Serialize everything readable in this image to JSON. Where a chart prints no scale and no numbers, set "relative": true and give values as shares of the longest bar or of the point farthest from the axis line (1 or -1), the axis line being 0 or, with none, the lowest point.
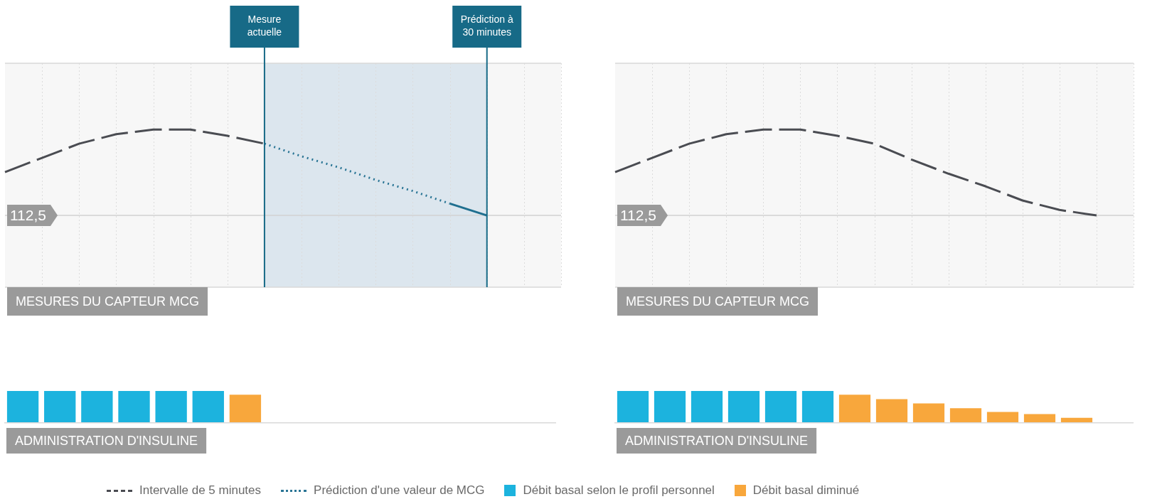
{
  "chart_data": [
    {
      "type": "line",
      "relative": true,
      "categories": [
        null,
        null,
        null,
        null,
        null,
        null,
        null,
        null,
        null,
        null,
        null,
        null,
        null,
        null,
        null,
        null
      ],
      "series": [
        {
          "name": "Intervalle de 5 minutes",
          "color": "#4a4c52",
          "line_style": "dashed",
          "values": [
            0.73,
            0.82,
            0.91,
            0.97,
            1.0,
            1.0,
            0.96,
            0.91,
            null,
            null,
            null,
            null,
            null,
            null,
            null,
            null
          ]
        },
        {
          "name": "Prédiction d'une valeur de MCG",
          "color": "#2a7595",
          "line_style": "dotted",
          "values": [
            null,
            null,
            null,
            null,
            null,
            null,
            null,
            0.91,
            0.83,
            0.76,
            0.68,
            0.61,
            0.53,
            null,
            null,
            null
          ]
        },
        {
          "color": "#1f6f8f",
          "line_style": "solid",
          "values": [
            null,
            null,
            null,
            null,
            null,
            null,
            null,
            null,
            null,
            null,
            null,
            null,
            0.53,
            0.455,
            null,
            null
          ]
        }
      ],
      "ref_lines": [
        {
          "axis": "y",
          "value": 0.455
        }
      ],
      "annotations": [
        "112,5",
        "Mesure actuelle",
        "Prédiction à 30 minutes"
      ],
      "xlabel": "MESURES DU CAPTEUR MCG",
      "grid": "x",
      "legend": "bottom",
      "marker": "none"
    },
    {
      "type": "line",
      "relative": true,
      "categories": [
        null,
        null,
        null,
        null,
        null,
        null,
        null,
        null,
        null,
        null,
        null,
        null,
        null,
        null,
        null
      ],
      "series": [
        {
          "color": "#4a4c52",
          "line_style": "dashed",
          "values": [
            0.73,
            0.82,
            0.91,
            0.97,
            1.0,
            1.0,
            0.96,
            0.91,
            0.81,
            0.72,
            0.64,
            0.55,
            0.49,
            0.455,
            null
          ]
        }
      ],
      "ref_lines": [
        {
          "axis": "y",
          "value": 0.455
        }
      ],
      "annotations": [
        "112,5"
      ],
      "xlabel": "MESURES DU CAPTEUR MCG",
      "grid": "x",
      "marker": "none"
    },
    {
      "type": "bar",
      "relative": true,
      "categories": [
        null,
        null,
        null,
        null,
        null,
        null,
        null
      ],
      "values": [
        1,
        1,
        1,
        1,
        1,
        1,
        0.88
      ],
      "colors": [
        "#1cb3de",
        "#1cb3de",
        "#1cb3de",
        "#1cb3de",
        "#1cb3de",
        "#1cb3de",
        "#f8a73c"
      ],
      "xlabel": "ADMINISTRATION D'INSULINE"
    },
    {
      "type": "bar",
      "relative": true,
      "categories": [
        null,
        null,
        null,
        null,
        null,
        null,
        null,
        null,
        null,
        null,
        null,
        null,
        null
      ],
      "values": [
        1,
        1,
        1,
        1,
        1,
        1,
        0.88,
        0.74,
        0.6,
        0.45,
        0.33,
        0.26,
        0.14
      ],
      "colors": [
        "#1cb3de",
        "#1cb3de",
        "#1cb3de",
        "#1cb3de",
        "#1cb3de",
        "#1cb3de",
        "#f8a73c",
        "#f8a73c",
        "#f8a73c",
        "#f8a73c",
        "#f8a73c",
        "#f8a73c",
        "#f8a73c"
      ],
      "annotations": [
        "Débit basal selon le profil personnel",
        "Débit basal diminué"
      ],
      "xlabel": "ADMINISTRATION D'INSULINE"
    }
  ]
}
